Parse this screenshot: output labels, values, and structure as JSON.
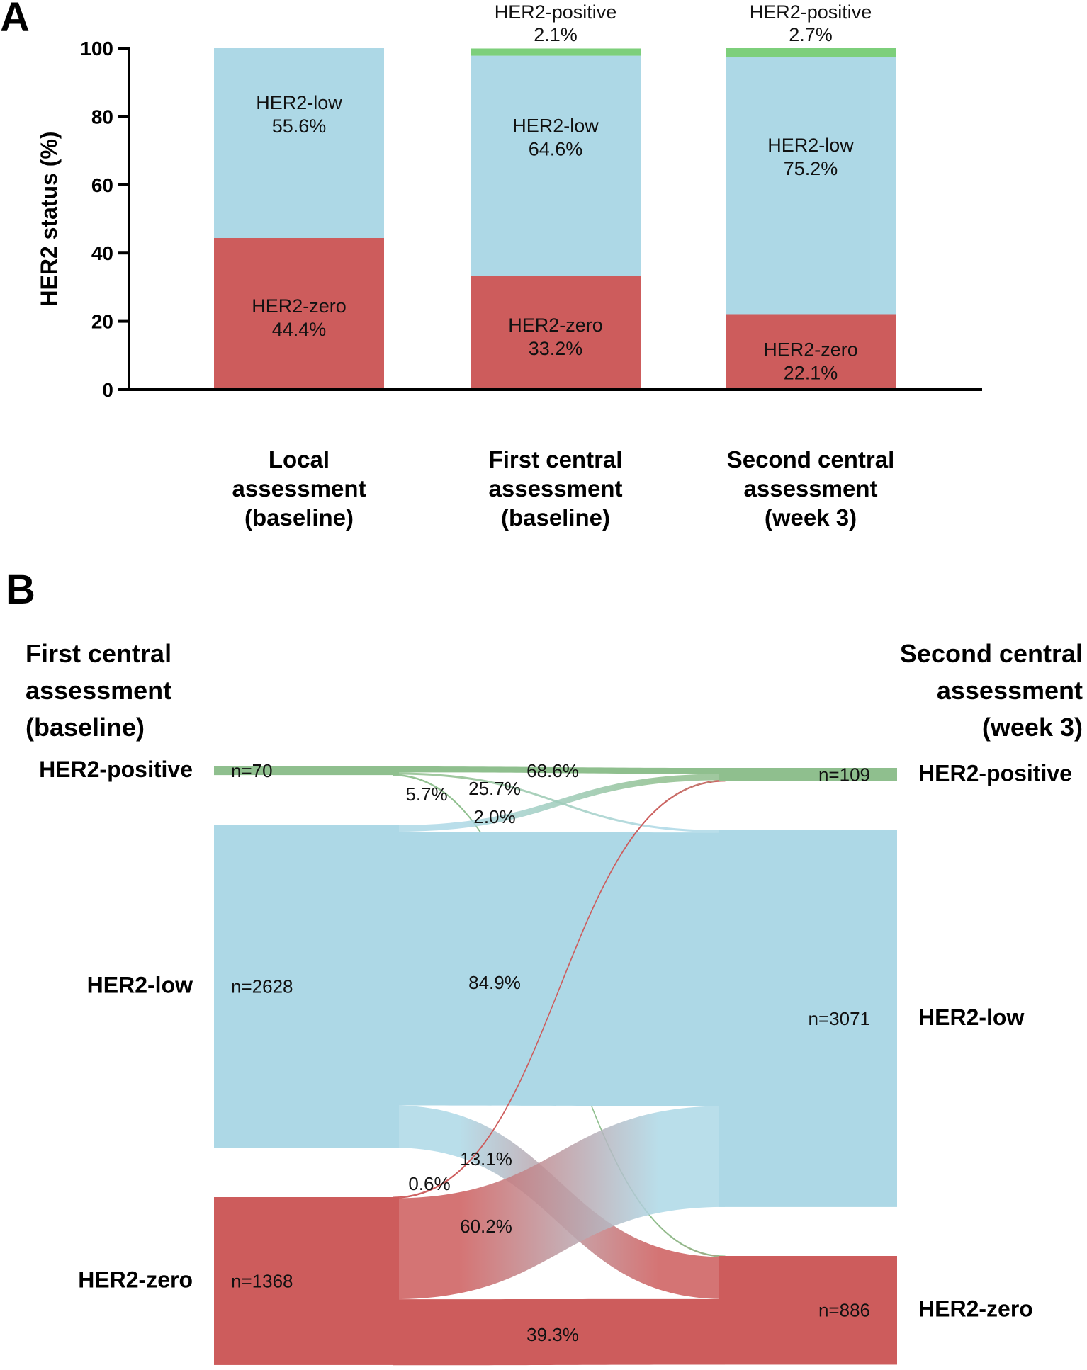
{
  "colors": {
    "positive": "#7dcf7b",
    "low": "#add8e6",
    "zero": "#cd5c5c",
    "sankey_positive": "#8fbf8e",
    "sankey_low": "#add8e6",
    "sankey_zero": "#cd5c5c",
    "axis": "#000000"
  },
  "chart_data": [
    {
      "panel": "A",
      "type": "bar",
      "stacked": true,
      "ylabel": "HER2 status (%)",
      "xlabel": "",
      "ylim": [
        0,
        100
      ],
      "yticks": [
        0,
        20,
        40,
        60,
        80,
        100
      ],
      "ytick_labels": [
        "0",
        "20",
        "40",
        "60",
        "80",
        "100"
      ],
      "grid": false,
      "categories": [
        [
          "Local",
          "assessment",
          "(baseline)"
        ],
        [
          "First central",
          "assessment",
          "(baseline)"
        ],
        [
          "Second central",
          "assessment",
          "(week 3)"
        ]
      ],
      "series": [
        {
          "name": "HER2-zero",
          "key": "zero",
          "values": [
            44.4,
            33.2,
            22.1
          ],
          "labels": [
            "44.4%",
            "33.2%",
            "22.1%"
          ]
        },
        {
          "name": "HER2-low",
          "key": "low",
          "values": [
            55.6,
            64.6,
            75.2
          ],
          "labels": [
            "55.6%",
            "64.6%",
            "75.2%"
          ]
        },
        {
          "name": "HER2-positive",
          "key": "positive",
          "values": [
            0,
            2.1,
            2.7
          ],
          "labels": [
            "",
            "2.1%",
            "2.7%"
          ]
        }
      ]
    },
    {
      "panel": "B",
      "type": "sankey",
      "left_title": [
        "First central",
        "assessment",
        "(baseline)"
      ],
      "right_title": [
        "Second central",
        "assessment",
        "(week 3)"
      ],
      "left_nodes": [
        {
          "key": "positive",
          "name": "HER2-positive",
          "n": 70,
          "n_label": "n=70"
        },
        {
          "key": "low",
          "name": "HER2-low",
          "n": 2628,
          "n_label": "n=2628"
        },
        {
          "key": "zero",
          "name": "HER2-zero",
          "n": 1368,
          "n_label": "n=1368"
        }
      ],
      "right_nodes": [
        {
          "key": "positive",
          "name": "HER2-positive",
          "n": 109,
          "n_label": "n=109"
        },
        {
          "key": "low",
          "name": "HER2-low",
          "n": 3071,
          "n_label": "n=3071"
        },
        {
          "key": "zero",
          "name": "HER2-zero",
          "n": 886,
          "n_label": "n=886"
        }
      ],
      "flows": [
        {
          "from": "positive",
          "to": "positive",
          "pct": 68.6,
          "label": "68.6%"
        },
        {
          "from": "positive",
          "to": "low",
          "pct": 25.7,
          "label": "25.7%"
        },
        {
          "from": "positive",
          "to": "zero",
          "pct": 5.7,
          "label": "5.7%"
        },
        {
          "from": "low",
          "to": "positive",
          "pct": 2.0,
          "label": "2.0%"
        },
        {
          "from": "low",
          "to": "low",
          "pct": 84.9,
          "label": "84.9%"
        },
        {
          "from": "low",
          "to": "zero",
          "pct": 13.1,
          "label": "13.1%"
        },
        {
          "from": "zero",
          "to": "positive",
          "pct": 0.6,
          "label": "0.6%"
        },
        {
          "from": "zero",
          "to": "low",
          "pct": 60.2,
          "label": "60.2%"
        },
        {
          "from": "zero",
          "to": "zero",
          "pct": 39.3,
          "label": "39.3%"
        }
      ]
    }
  ],
  "panels": {
    "a_letter": "A",
    "b_letter": "B"
  }
}
